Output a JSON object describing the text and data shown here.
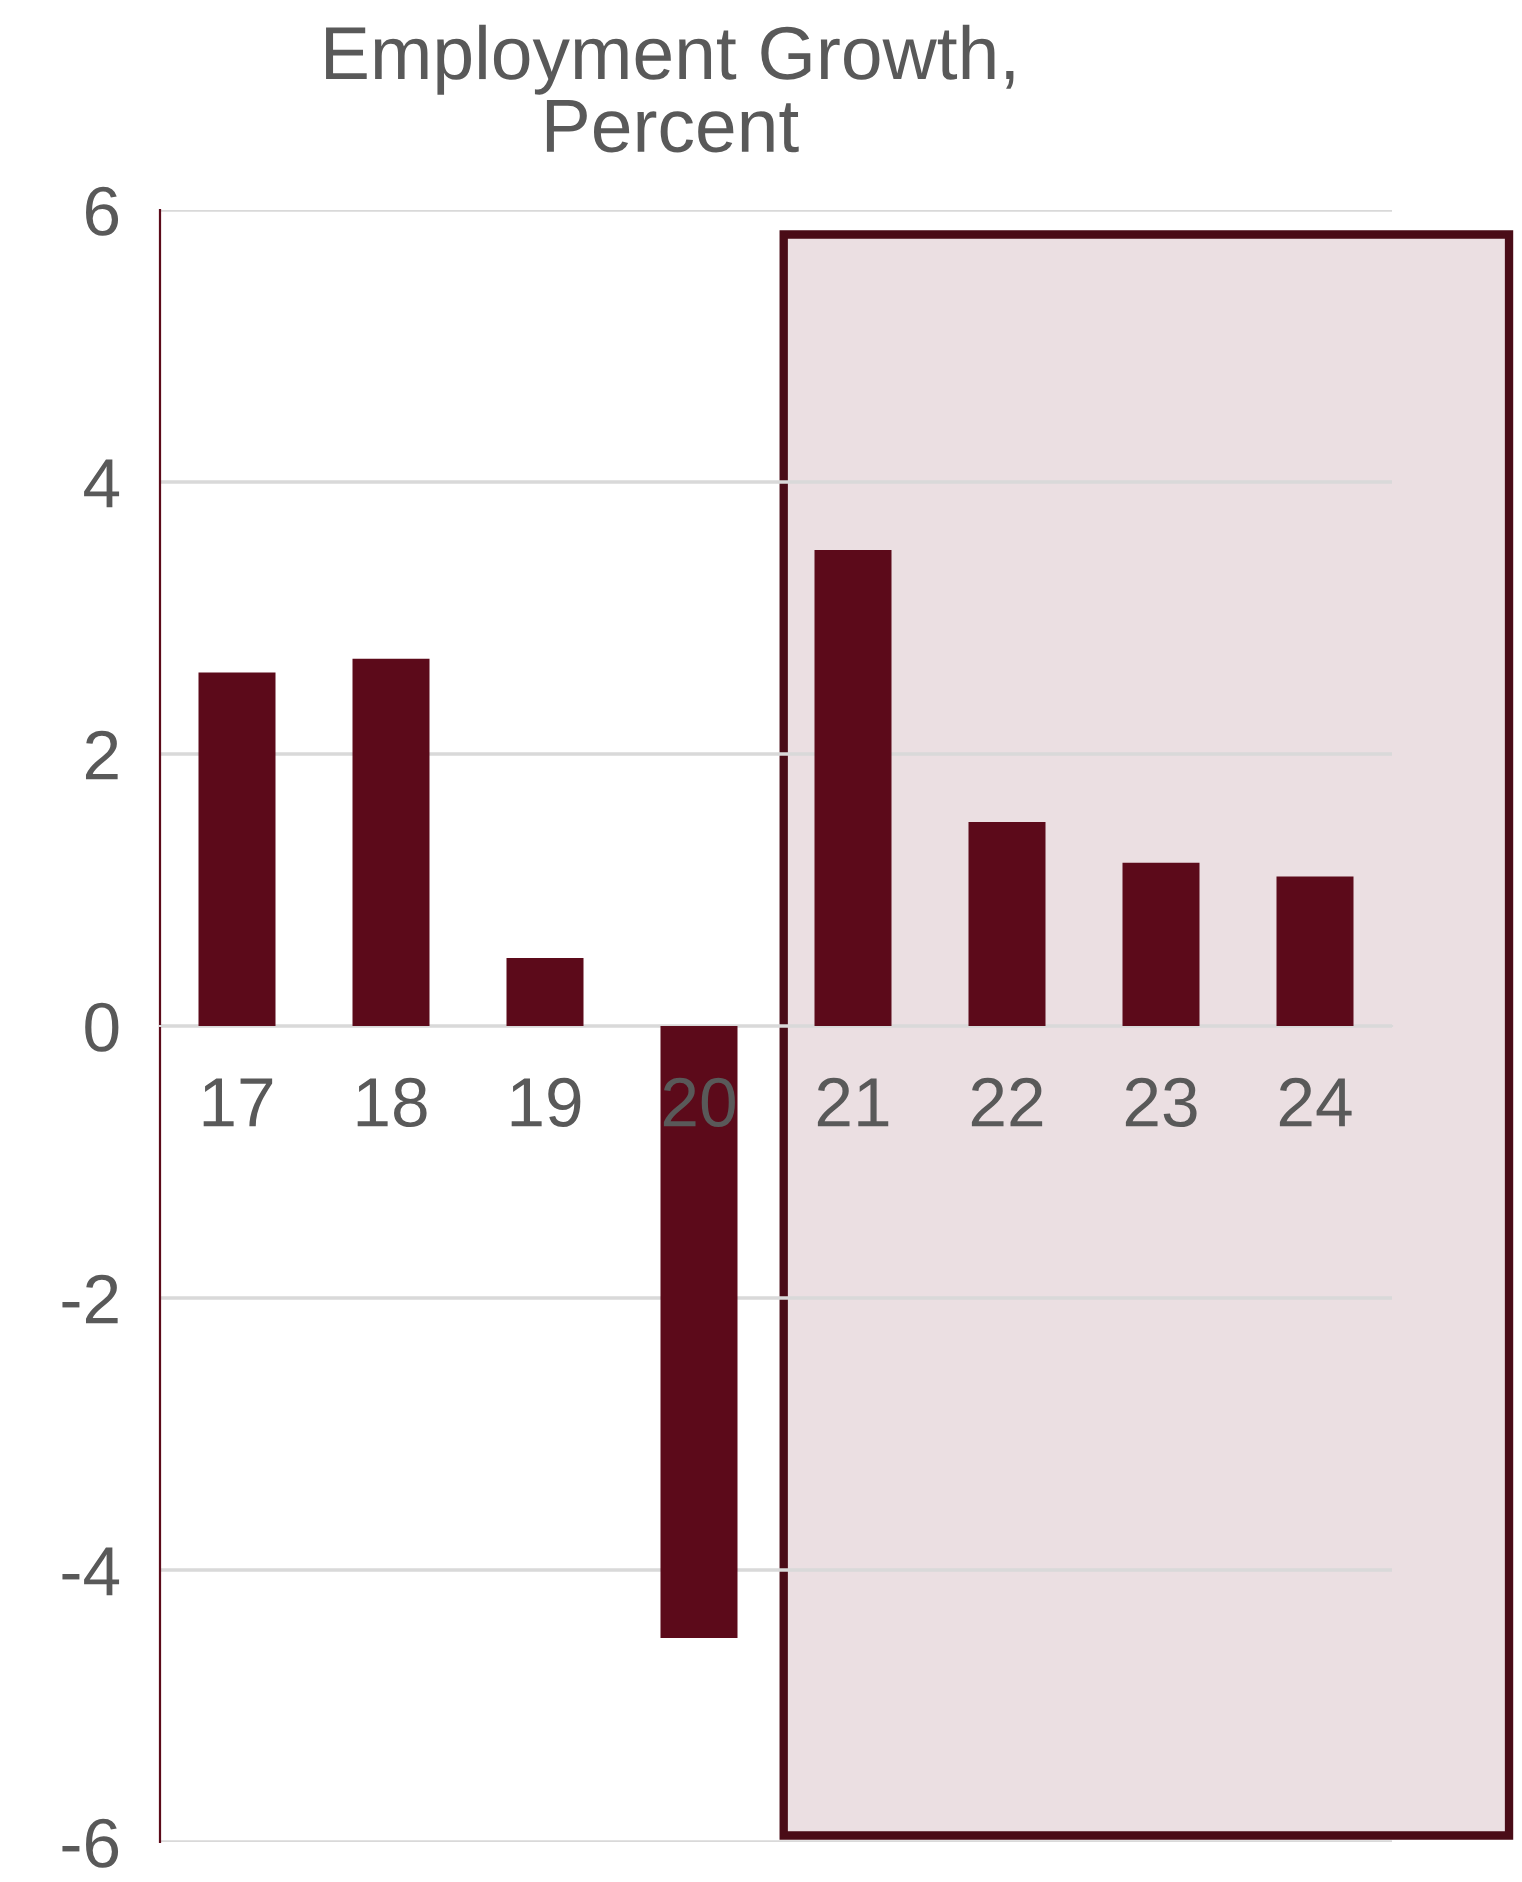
{
  "chart_data": {
    "type": "bar",
    "title": "Employment Growth,\nPercent",
    "categories": [
      "17",
      "18",
      "19",
      "20",
      "21",
      "22",
      "23",
      "24"
    ],
    "values": [
      2.6,
      2.7,
      0.5,
      -4.5,
      3.5,
      1.5,
      1.2,
      1.1
    ],
    "color": "#5c0a1a",
    "ylim": [
      -6,
      6
    ],
    "yticks": [
      -6,
      -4,
      -2,
      0,
      2,
      4,
      6
    ],
    "grid": "y",
    "legend": false,
    "bands": [
      {
        "axis": "x",
        "from": "21",
        "to": "24",
        "color": "#ebdfe2"
      }
    ]
  }
}
